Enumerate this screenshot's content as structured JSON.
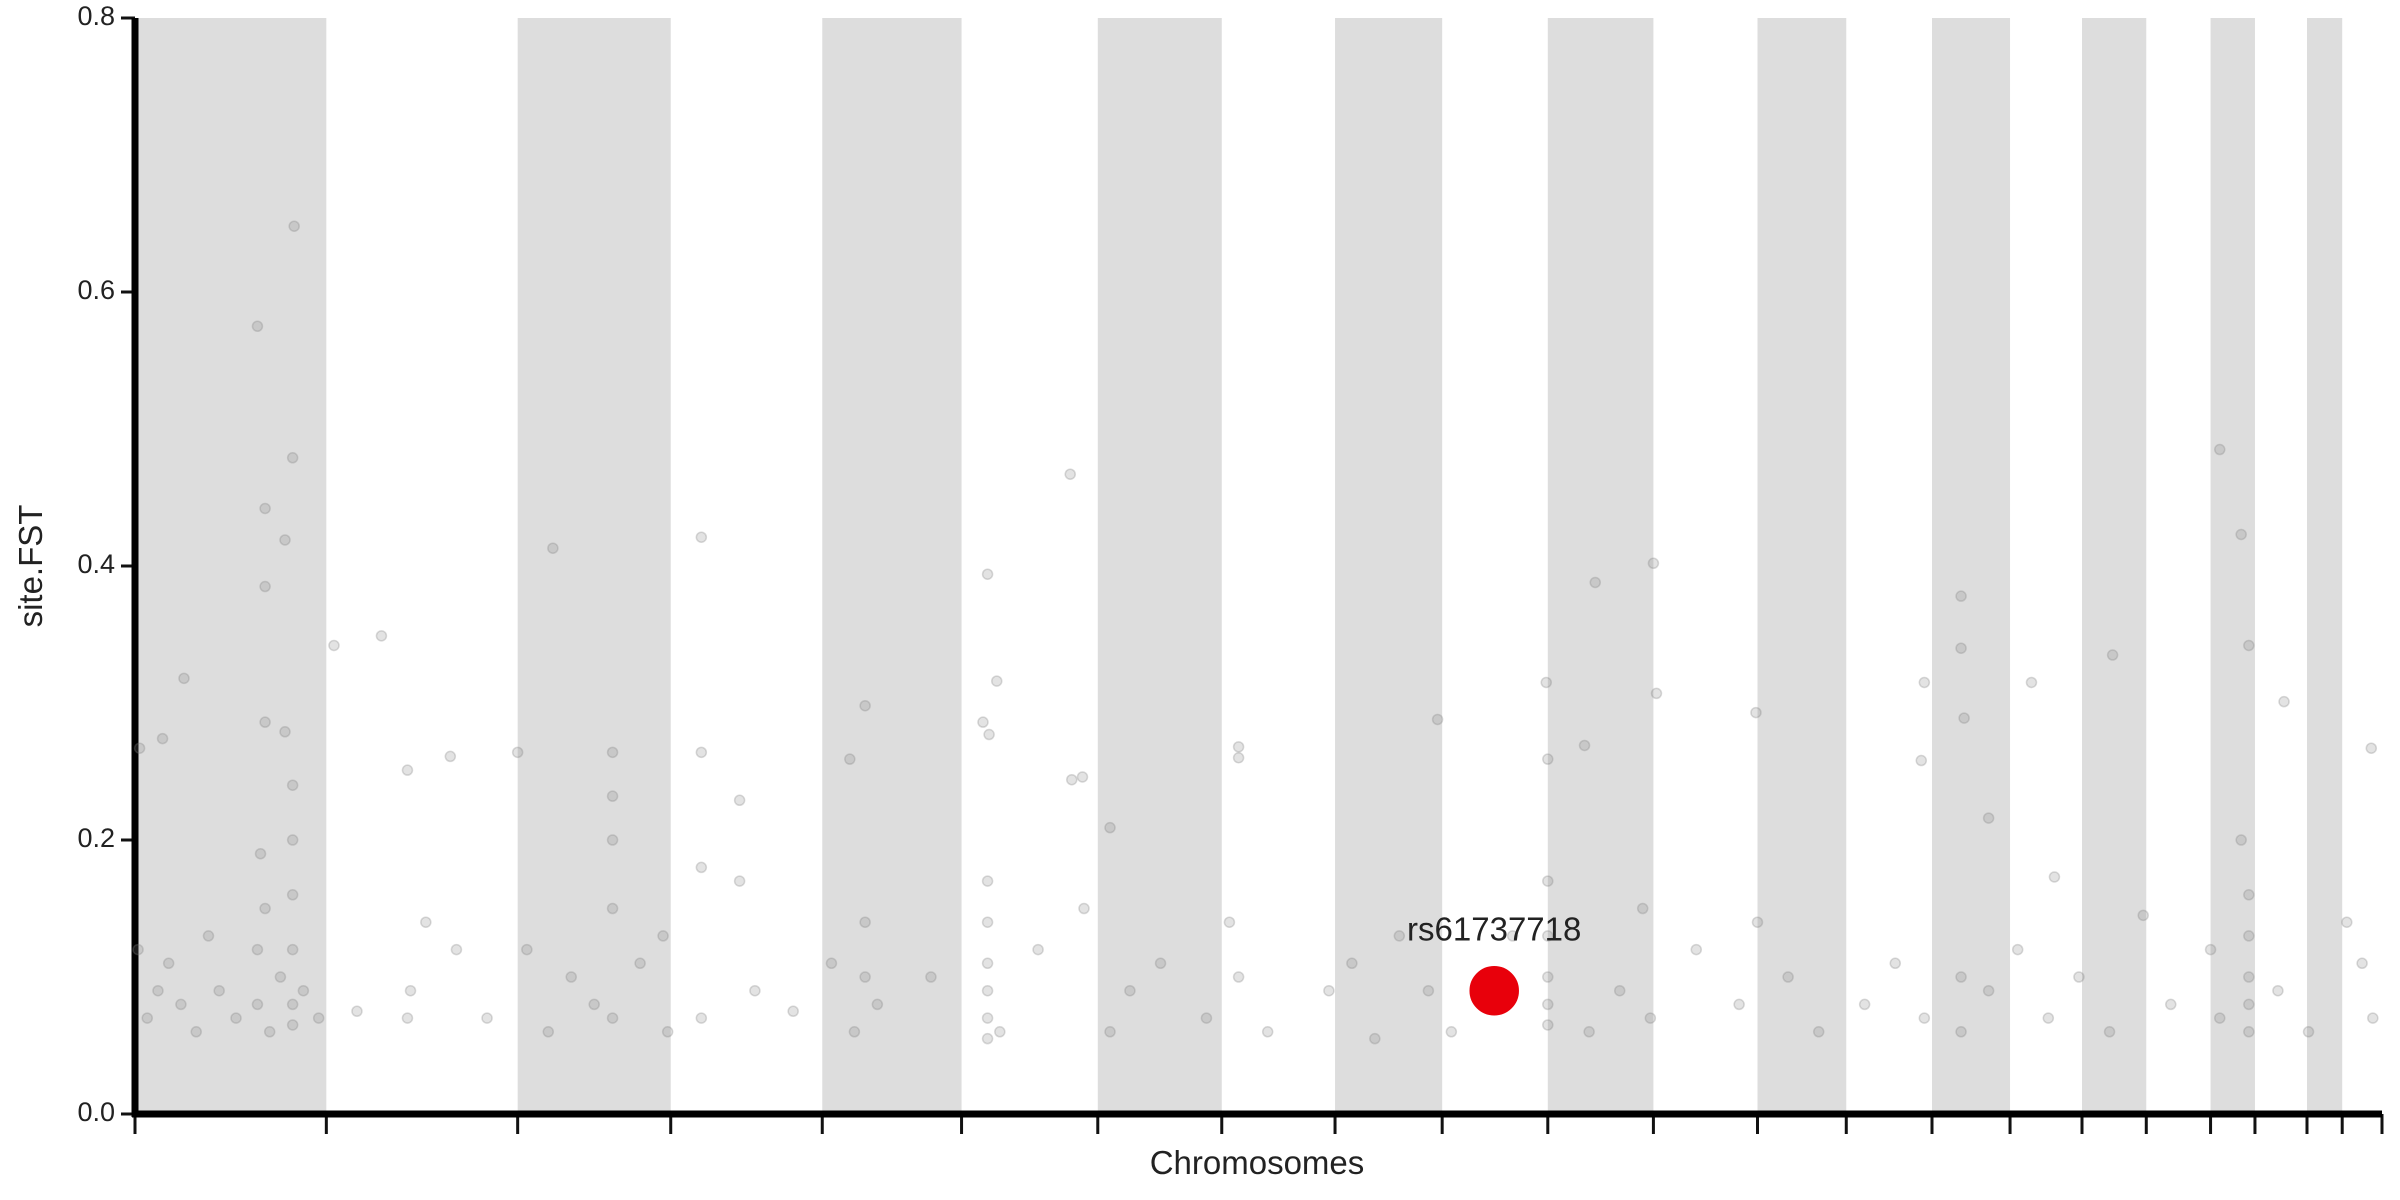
{
  "chart_data": {
    "type": "scatter",
    "x_label": "Chromosomes",
    "y_label": "site.FST",
    "xlim": [
      0,
      1468
    ],
    "ylim": [
      0,
      0.8
    ],
    "xticks": [
      0,
      125,
      250,
      350,
      449,
      540,
      629,
      710,
      784,
      854,
      923,
      992,
      1060,
      1118,
      1174,
      1225,
      1272,
      1314,
      1356,
      1385,
      1419,
      1442,
      1468
    ],
    "yticks": [
      {
        "value": 0,
        "label": "0.0"
      },
      0.2,
      0.4,
      0.6,
      0.8
    ],
    "shade_alternate_intervals": true,
    "band_color": "#dddddd",
    "series": [
      {
        "color": "#808080",
        "x": [
          80,
          104,
          103,
          85,
          98,
          85,
          85,
          98,
          32,
          3,
          18,
          130,
          161,
          273,
          370,
          611,
          1362,
          1376,
          992,
          954,
          557,
          563,
          178,
          206,
          250,
          312,
          312,
          370,
          395,
          477,
          467,
          554,
          558,
          612,
          619,
          637,
          721,
          721,
          851,
          922,
          923,
          947,
          994,
          1059,
          1169,
          1193,
          1193,
          1239,
          1292,
          1381,
          1404,
          1461,
          1167,
          1195,
          1211,
          1254,
          1312,
          2,
          8,
          15,
          22,
          30,
          40,
          48,
          55,
          66,
          80,
          80,
          82,
          85,
          88,
          95,
          103,
          103,
          103,
          103,
          103,
          103,
          110,
          120,
          145,
          178,
          180,
          190,
          210,
          230,
          256,
          270,
          285,
          300,
          312,
          312,
          312,
          330,
          345,
          348,
          370,
          370,
          395,
          405,
          430,
          455,
          470,
          477,
          477,
          485,
          520,
          557,
          557,
          557,
          557,
          557,
          557,
          565,
          590,
          620,
          637,
          650,
          670,
          700,
          715,
          721,
          740,
          780,
          795,
          810,
          826,
          845,
          860,
          900,
          923,
          923,
          923,
          923,
          923,
          950,
          970,
          985,
          990,
          1020,
          1048,
          1060,
          1080,
          1100,
          1130,
          1150,
          1169,
          1193,
          1193,
          1211,
          1230,
          1250,
          1270,
          1290,
          1330,
          1356,
          1362,
          1376,
          1381,
          1381,
          1381,
          1381,
          1381,
          1400,
          1420,
          1445,
          1455,
          1462
        ],
        "values": [
          0.575,
          0.648,
          0.479,
          0.442,
          0.419,
          0.385,
          0.286,
          0.279,
          0.318,
          0.267,
          0.274,
          0.342,
          0.349,
          0.413,
          0.421,
          0.467,
          0.485,
          0.423,
          0.402,
          0.388,
          0.394,
          0.316,
          0.251,
          0.261,
          0.264,
          0.264,
          0.232,
          0.264,
          0.229,
          0.298,
          0.259,
          0.286,
          0.277,
          0.244,
          0.246,
          0.209,
          0.268,
          0.26,
          0.288,
          0.315,
          0.259,
          0.269,
          0.307,
          0.293,
          0.315,
          0.378,
          0.34,
          0.315,
          0.335,
          0.342,
          0.301,
          0.267,
          0.258,
          0.289,
          0.216,
          0.173,
          0.145,
          0.12,
          0.07,
          0.09,
          0.11,
          0.08,
          0.06,
          0.13,
          0.09,
          0.07,
          0.12,
          0.08,
          0.19,
          0.15,
          0.06,
          0.1,
          0.24,
          0.2,
          0.16,
          0.12,
          0.08,
          0.065,
          0.09,
          0.07,
          0.075,
          0.07,
          0.09,
          0.14,
          0.12,
          0.07,
          0.12,
          0.06,
          0.1,
          0.08,
          0.2,
          0.15,
          0.07,
          0.11,
          0.13,
          0.06,
          0.18,
          0.07,
          0.17,
          0.09,
          0.075,
          0.11,
          0.06,
          0.1,
          0.14,
          0.08,
          0.1,
          0.17,
          0.14,
          0.11,
          0.09,
          0.07,
          0.055,
          0.06,
          0.12,
          0.15,
          0.06,
          0.09,
          0.11,
          0.07,
          0.14,
          0.1,
          0.06,
          0.09,
          0.11,
          0.055,
          0.13,
          0.09,
          0.06,
          0.13,
          0.17,
          0.13,
          0.1,
          0.08,
          0.065,
          0.06,
          0.09,
          0.15,
          0.07,
          0.12,
          0.08,
          0.14,
          0.1,
          0.06,
          0.08,
          0.11,
          0.07,
          0.06,
          0.1,
          0.09,
          0.12,
          0.07,
          0.1,
          0.06,
          0.08,
          0.12,
          0.07,
          0.2,
          0.16,
          0.13,
          0.1,
          0.08,
          0.06,
          0.09,
          0.06,
          0.14,
          0.11,
          0.07
        ]
      },
      {
        "name": "rs61737718",
        "color": "#e8000b",
        "x": [
          888
        ],
        "values": [
          0.09
        ]
      }
    ]
  }
}
